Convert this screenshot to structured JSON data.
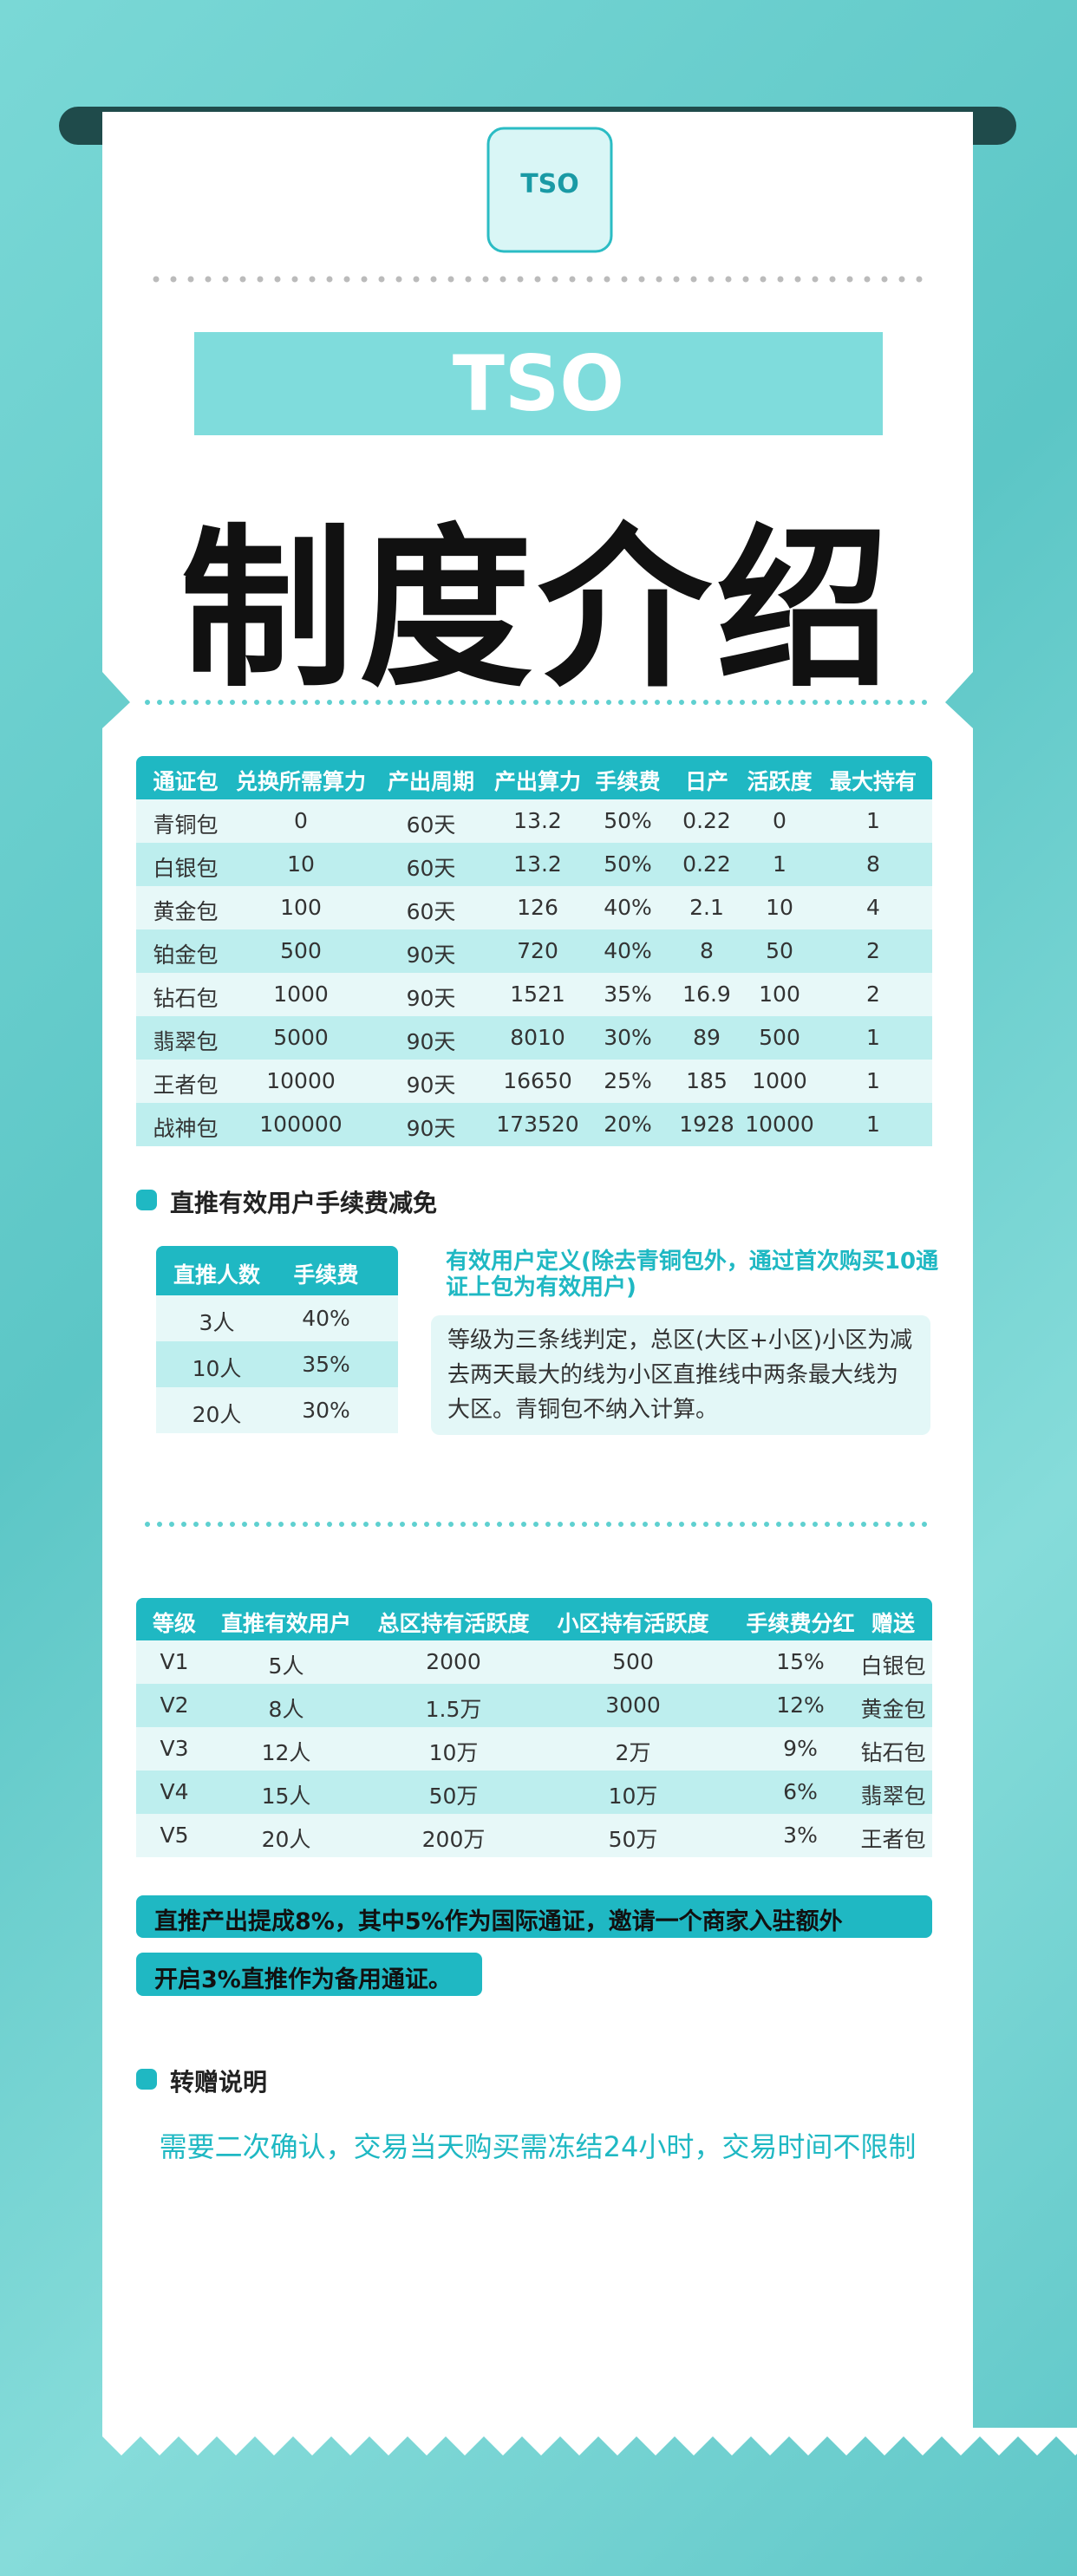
{
  "logo": {
    "text": "TSO"
  },
  "banner": "TSO",
  "title": "制度介绍",
  "package_table": {
    "header": [
      "通证包",
      "兑换所需算力",
      "产出周期",
      "产出算力",
      "手续费",
      "日产",
      "活跃度",
      "最大持有"
    ],
    "rows": [
      [
        "青铜包",
        "0",
        "60天",
        "13.2",
        "50%",
        "0.22",
        "0",
        "1"
      ],
      [
        "白银包",
        "10",
        "60天",
        "13.2",
        "50%",
        "0.22",
        "1",
        "8"
      ],
      [
        "黄金包",
        "100",
        "60天",
        "126",
        "40%",
        "2.1",
        "10",
        "4"
      ],
      [
        "铂金包",
        "500",
        "90天",
        "720",
        "40%",
        "8",
        "50",
        "2"
      ],
      [
        "钻石包",
        "1000",
        "90天",
        "1521",
        "35%",
        "16.9",
        "100",
        "2"
      ],
      [
        "翡翠包",
        "5000",
        "90天",
        "8010",
        "30%",
        "89",
        "500",
        "1"
      ],
      [
        "王者包",
        "10000",
        "90天",
        "16650",
        "25%",
        "185",
        "1000",
        "1"
      ],
      [
        "战神包",
        "100000",
        "90天",
        "173520",
        "20%",
        "1928",
        "10000",
        "1"
      ]
    ]
  },
  "fee_section": {
    "title": "直推有效用户手续费减免",
    "table": {
      "header": [
        "直推人数",
        "手续费"
      ],
      "rows": [
        [
          "3人",
          "40%"
        ],
        [
          "10人",
          "35%"
        ],
        [
          "20人",
          "30%"
        ]
      ]
    },
    "note_title": "有效用户定义(除去青铜包外，通过首次购买10通证上包为有效用户)",
    "note_body": "等级为三条线判定，总区(大区+小区)小区为减去两天最大的线为小区直推线中两条最大线为大区。青铜包不纳入计算。"
  },
  "level_table": {
    "header": [
      "等级",
      "直推有效用户",
      "总区持有活跃度",
      "小区持有活跃度",
      "手续费分红",
      "赠送"
    ],
    "rows": [
      [
        "V1",
        "5人",
        "2000",
        "500",
        "15%",
        "白银包"
      ],
      [
        "V2",
        "8人",
        "1.5万",
        "3000",
        "12%",
        "黄金包"
      ],
      [
        "V3",
        "12人",
        "10万",
        "2万",
        "9%",
        "钻石包"
      ],
      [
        "V4",
        "15人",
        "50万",
        "10万",
        "6%",
        "翡翠包"
      ],
      [
        "V5",
        "20人",
        "200万",
        "50万",
        "3%",
        "王者包"
      ]
    ]
  },
  "highlights": [
    "直推产出提成8%，其中5%作为国际通证，邀请一个商家入驻额外",
    "开启3%直推作为备用通证。"
  ],
  "transfer_section": {
    "title": "转赠说明",
    "body": "需要二次确认，交易当天购买需冻结24小时，交易时间不限制"
  }
}
